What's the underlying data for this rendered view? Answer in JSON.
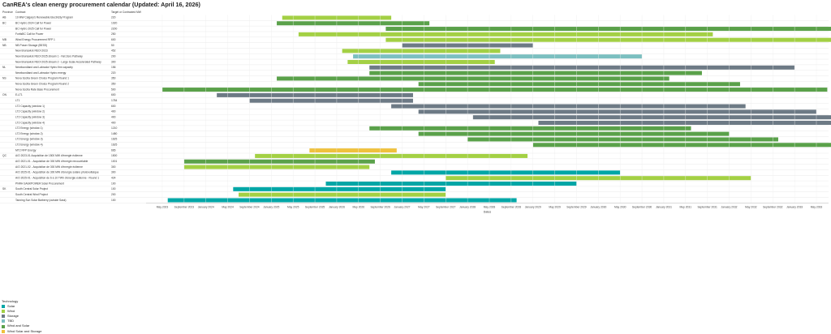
{
  "title": "CanREA's clean energy procurement calendar (Updated: April 16, 2026)",
  "chart_data": {
    "type": "gantt",
    "columns": [
      "Province",
      "Contract",
      "Target or Contracted MW"
    ],
    "xlabel": "Dates",
    "x_ticks": [
      "May 2023",
      "September 2023",
      "January 2024",
      "May 2024",
      "September 2024",
      "January 2025",
      "May 2025",
      "September 2025",
      "January 2026",
      "May 2026",
      "September 2026",
      "January 2027",
      "May 2027",
      "September 2027",
      "January 2028",
      "May 2028",
      "September 2028",
      "January 2029",
      "May 2029",
      "September 2029",
      "January 2030",
      "May 2030",
      "September 2030",
      "January 2031",
      "May 2031",
      "September 2031",
      "January 2032",
      "May 2032",
      "September 2032",
      "January 2033",
      "May 2033"
    ],
    "legend_title": "Technology",
    "legend": [
      {
        "name": "Solar",
        "color": "#00a6a6"
      },
      {
        "name": "Wind",
        "color": "#a3d044"
      },
      {
        "name": "Storage",
        "color": "#6d7a85"
      },
      {
        "name": "TBD",
        "color": "#7bbfc0"
      },
      {
        "name": "Wind and Solar",
        "color": "#5aa14a"
      },
      {
        "name": "Wind Solar and Storage",
        "color": "#efc13d"
      }
    ],
    "rows": [
      {
        "province": "AB",
        "contract": "10 MW Calgary's Renewable Electricity Program",
        "mw": "220",
        "tech": "Wind",
        "start": "2025-03",
        "end": "2026-11"
      },
      {
        "province": "BC",
        "contract": "BC Hydro 2024 Call for Power",
        "mw": "1020",
        "tech": "Wind and Solar",
        "start": "2025-02",
        "end": "2027-06"
      },
      {
        "province": "",
        "contract": "BC Hydro 2025 Call for Power",
        "mw": "2200",
        "tech": "Wind and Solar",
        "start": "2026-10",
        "end": "2033-10"
      },
      {
        "province": "",
        "contract": "FortisBC Call for Power",
        "mw": "250",
        "tech": "Wind",
        "start": "2025-06",
        "end": "2031-10"
      },
      {
        "province": "MB",
        "contract": "Wind Energy Procurement RFP 1",
        "mw": "600",
        "tech": "Wind",
        "start": "2026-10",
        "end": "2033-10"
      },
      {
        "province": "NB",
        "contract": "NB Power Storage (BESS)",
        "mw": "50",
        "tech": "Storage",
        "start": "2027-01",
        "end": "2029-01"
      },
      {
        "province": "",
        "contract": "New Brunswick REOI 2023",
        "mw": "452",
        "tech": "Wind",
        "start": "2026-02",
        "end": "2028-07"
      },
      {
        "province": "",
        "contract": "New Brunswick REOI 2025 stream 1 - Net Zero Pathway",
        "mw": "200",
        "tech": "TBD",
        "start": "2026-04",
        "end": "2030-09"
      },
      {
        "province": "",
        "contract": "New Brunswick REOI 2025 stream 2 - Large Scale Accelerated Pathway",
        "mw": "300",
        "tech": "Wind",
        "start": "2026-03",
        "end": "2028-06"
      },
      {
        "province": "NL",
        "contract": "Newfoundland and Labrador Hydro firm capacity",
        "mw": "156",
        "tech": "Storage",
        "start": "2026-07",
        "end": "2033-01"
      },
      {
        "province": "",
        "contract": "Newfoundland and Labrador Hydro energy",
        "mw": "220",
        "tech": "Wind and Solar",
        "start": "2026-07",
        "end": "2031-08"
      },
      {
        "province": "NS",
        "contract": "Nova Scotia Green Choice Program Round 1",
        "mw": "350",
        "tech": "Wind and Solar",
        "start": "2025-02",
        "end": "2031-02"
      },
      {
        "province": "",
        "contract": "Nova Scotia Green Choice Program Round 2",
        "mw": "350",
        "tech": "Wind and Solar",
        "start": "2027-04",
        "end": "2032-03"
      },
      {
        "province": "",
        "contract": "Nova Scotia Rate Base Procurement",
        "mw": "500",
        "tech": "Wind and Solar",
        "start": "2023-05",
        "end": "2033-07"
      },
      {
        "province": "ON",
        "contract": "E-LT1",
        "mw": "600",
        "tech": "Storage",
        "start": "2024-03",
        "end": "2027-03"
      },
      {
        "province": "",
        "contract": "LT1",
        "mw": "1784",
        "tech": "Storage",
        "start": "2024-09",
        "end": "2027-03"
      },
      {
        "province": "",
        "contract": "LT2 Capacity (window 1)",
        "mw": "600",
        "tech": "Storage",
        "start": "2026-11",
        "end": "2032-04"
      },
      {
        "province": "",
        "contract": "LT2 Capacity (window 2)",
        "mw": "400",
        "tech": "Storage",
        "start": "2027-04",
        "end": "2033-05"
      },
      {
        "province": "",
        "contract": "LT2 Capacity (window 3)",
        "mw": "400",
        "tech": "Storage",
        "start": "2028-02",
        "end": "2033-10"
      },
      {
        "province": "",
        "contract": "LT2 Capacity (window 4)",
        "mw": "400",
        "tech": "Storage",
        "start": "2029-02",
        "end": "2033-10"
      },
      {
        "province": "",
        "contract": "LT2 Energy (window 1)",
        "mw": "1210",
        "tech": "Wind and Solar",
        "start": "2026-07",
        "end": "2031-06"
      },
      {
        "province": "",
        "contract": "LT2 Energy (window 2)",
        "mw": "1480",
        "tech": "Wind and Solar",
        "start": "2027-04",
        "end": "2032-01"
      },
      {
        "province": "",
        "contract": "LT2 Energy (window 3)",
        "mw": "1625",
        "tech": "Wind and Solar",
        "start": "2028-01",
        "end": "2032-10"
      },
      {
        "province": "",
        "contract": "LT2 Energy (window 4)",
        "mw": "1625",
        "tech": "Wind and Solar",
        "start": "2029-01",
        "end": "2033-10"
      },
      {
        "province": "",
        "contract": "MT2 RFP Energy",
        "mw": "665",
        "tech": "Wind Solar and Storage",
        "start": "2025-08",
        "end": "2026-12"
      },
      {
        "province": "QC",
        "contract": "A/O 2023-01 Acquisition de 1500 MW d'énergie éolienne",
        "mw": "1500",
        "tech": "Wind",
        "start": "2024-10",
        "end": "2028-12"
      },
      {
        "province": "",
        "contract": "A/O 2021-01 - Acquisition de 300 MW d'énergie renouvelable",
        "mw": "1001",
        "tech": "Wind and Solar",
        "start": "2023-09",
        "end": "2026-08"
      },
      {
        "province": "",
        "contract": "A/O 2021-02 - Acquisition de 300 MW d'énergie éolienne",
        "mw": "300",
        "tech": "Wind",
        "start": "2023-09",
        "end": "2026-07"
      },
      {
        "province": "",
        "contract": "A/O 2025-01 - Acquisition de 300 MW d'énergie solaire photovoltaïque",
        "mw": "300",
        "tech": "Solar",
        "start": "2026-11",
        "end": "2030-05"
      },
      {
        "province": "",
        "contract": "A/O 2025-01 - Acquisition de 6 à 10 TWh d'énergie éolienne - Round 1",
        "mw": "424",
        "tech": "Wind",
        "start": "2027-09",
        "end": "2032-05"
      },
      {
        "province": "",
        "contract": "PNRH SASKPOWER Solar Procurement",
        "mw": "100",
        "tech": "Solar",
        "start": "2025-11",
        "end": "2029-09"
      },
      {
        "province": "SK",
        "contract": "South Central Solar Project",
        "mw": "100",
        "tech": "Solar",
        "start": "2024-06",
        "end": "2027-09"
      },
      {
        "province": "",
        "contract": "South Central Wind Project",
        "mw": "200",
        "tech": "Wind",
        "start": "2024-07",
        "end": "2027-09"
      },
      {
        "province": "",
        "contract": "Tanning Sun Solar Barberry (outside Sask)",
        "mw": "100",
        "tech": "Solar",
        "start": "2023-06",
        "end": "2028-10"
      }
    ]
  }
}
